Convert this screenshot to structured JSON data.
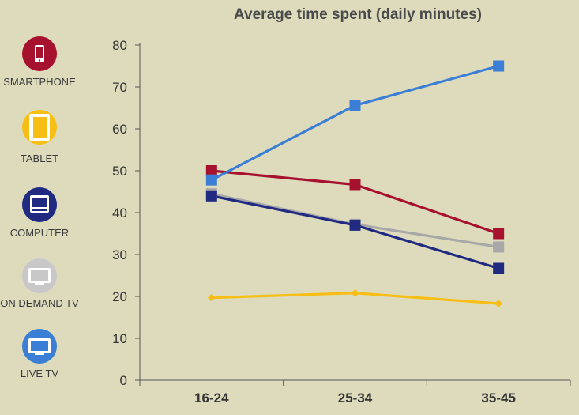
{
  "chart_data": {
    "type": "line",
    "title": "Average time spent (daily minutes)",
    "xlabel": "",
    "ylabel": "",
    "categories": [
      "16-24",
      "25-34",
      "35-45"
    ],
    "ylim": [
      0,
      80
    ],
    "yticks": [
      0,
      10,
      20,
      30,
      40,
      50,
      60,
      70,
      80
    ],
    "grid": false,
    "legend_placement": "left",
    "series": [
      {
        "name": "SMARTPHONE",
        "values": [
          50,
          46.7,
          35
        ],
        "color": "#a6122d",
        "marker": "square",
        "icon": "smartphone-icon"
      },
      {
        "name": "TABLET",
        "values": [
          19.7,
          20.8,
          18.3
        ],
        "color": "#f7be16",
        "marker": "diamond",
        "icon": "tablet-icon"
      },
      {
        "name": "COMPUTER",
        "values": [
          44,
          37,
          26.7
        ],
        "color": "#1f2a80",
        "marker": "square",
        "icon": "computer-icon"
      },
      {
        "name": "ON DEMAND TV",
        "values": [
          44.5,
          37.2,
          31.8
        ],
        "color": "#a8a8a8",
        "marker": "square",
        "icon": "tv-icon"
      },
      {
        "name": "LIVE TV",
        "values": [
          47.8,
          65.6,
          75
        ],
        "color": "#3a7fd5",
        "marker": "square",
        "icon": "tv-icon"
      }
    ]
  }
}
